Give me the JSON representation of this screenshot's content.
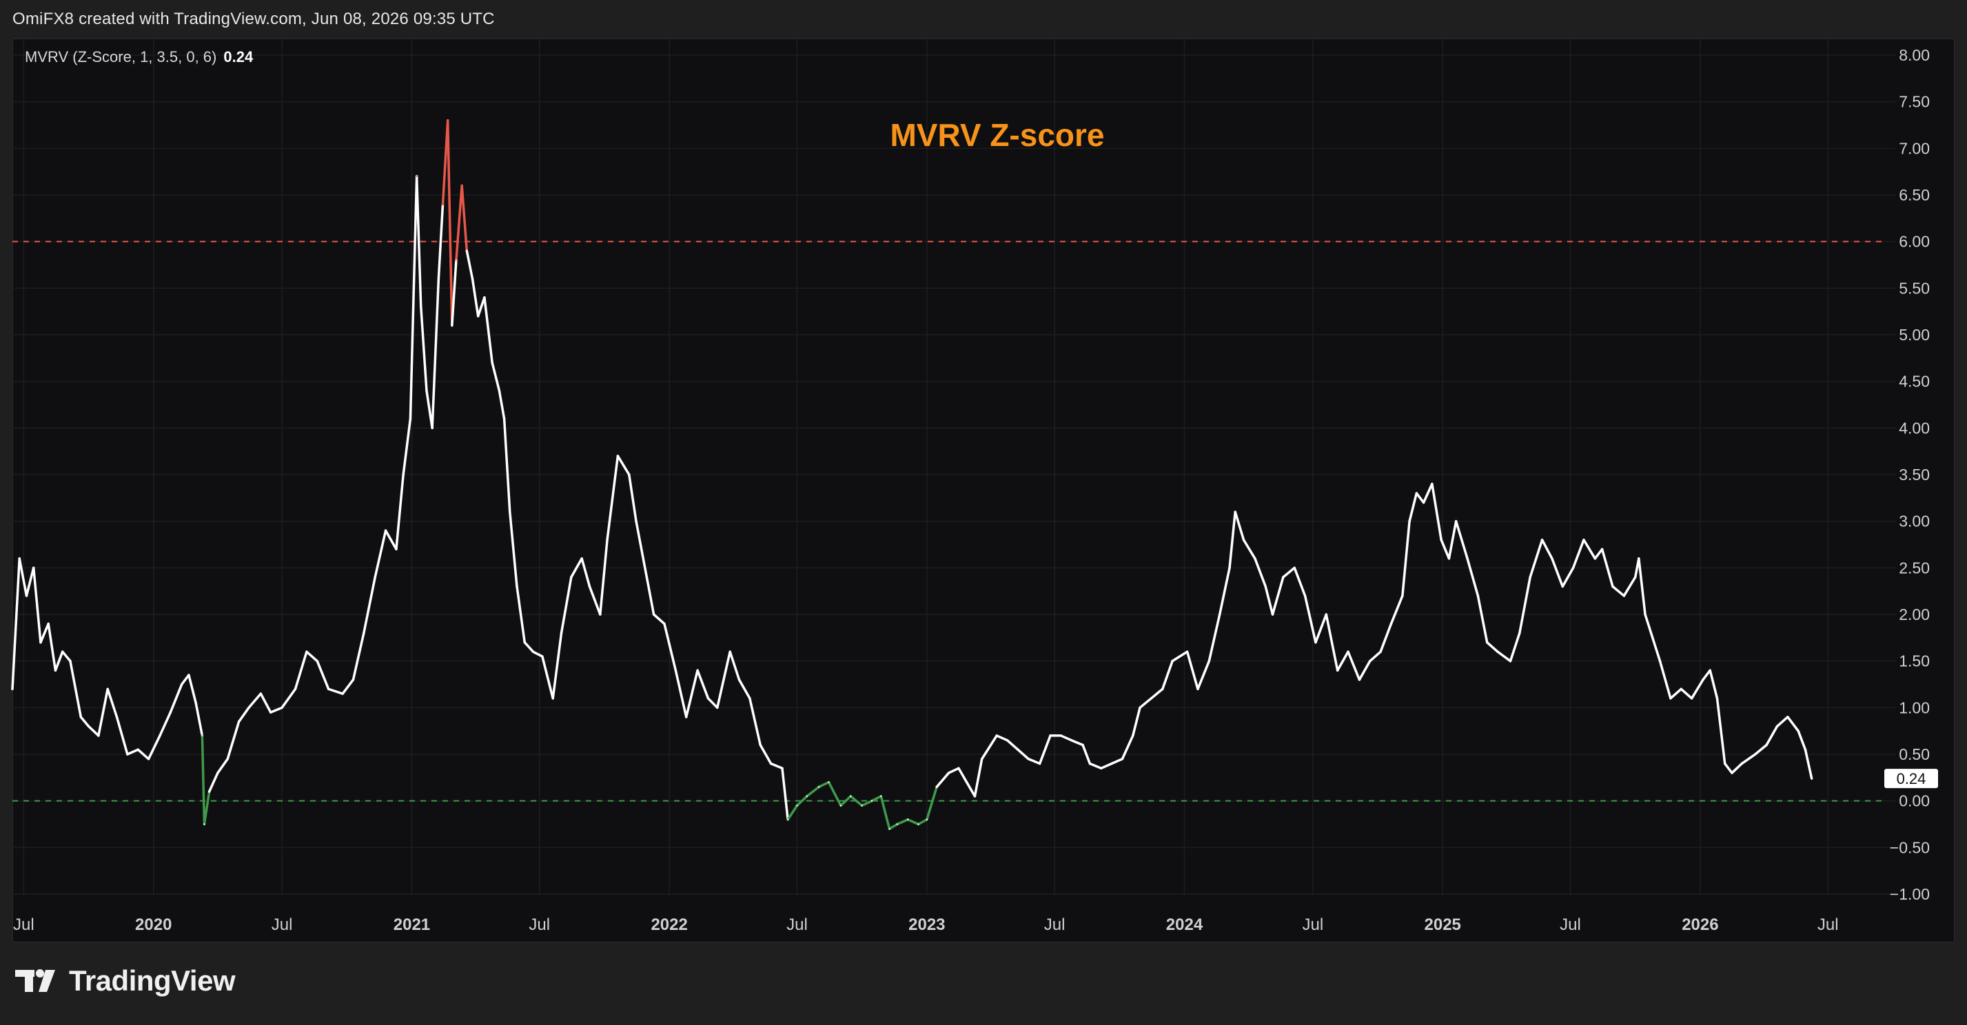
{
  "header": {
    "attribution": "OmiFX8 created with TradingView.com, Jun 08, 2026 09:35 UTC"
  },
  "legend": {
    "indicator": "MVRV (Z-Score, 1, 3.5, 0, 6)",
    "current_value": "0.24"
  },
  "footer": {
    "brand": "TradingView",
    "logo_icon": "tradingview-logo-icon"
  },
  "colors": {
    "background": "#0f0f11",
    "page": "#1f1f20",
    "line": "#ffffff",
    "above_threshold": "#e8584a",
    "below_threshold": "#3f9a4a",
    "title": "#f7931a",
    "upper_dash": "#e8584a",
    "lower_dash": "#3f9a4a",
    "grid": "#1e1e22",
    "axis_text": "#d0d0d0"
  },
  "chart_data": {
    "type": "line",
    "title": "MVRV Z-score",
    "ylim": [
      -1.0,
      8.0
    ],
    "y_ticks": [
      "8.00",
      "7.50",
      "7.00",
      "6.50",
      "6.00",
      "5.50",
      "5.00",
      "4.50",
      "4.00",
      "3.50",
      "3.00",
      "2.50",
      "2.00",
      "1.50",
      "1.00",
      "0.50",
      "0.00",
      "−0.50",
      "−1.00"
    ],
    "x_ticks": [
      {
        "label": "Jul",
        "date": "2019-07-01",
        "bold": false
      },
      {
        "label": "2020",
        "date": "2020-01-01",
        "bold": true
      },
      {
        "label": "Jul",
        "date": "2020-07-01",
        "bold": false
      },
      {
        "label": "2021",
        "date": "2021-01-01",
        "bold": true
      },
      {
        "label": "Jul",
        "date": "2021-07-01",
        "bold": false
      },
      {
        "label": "2022",
        "date": "2022-01-01",
        "bold": true
      },
      {
        "label": "Jul",
        "date": "2022-07-01",
        "bold": false
      },
      {
        "label": "2023",
        "date": "2023-01-01",
        "bold": true
      },
      {
        "label": "Jul",
        "date": "2023-07-01",
        "bold": false
      },
      {
        "label": "2024",
        "date": "2024-01-01",
        "bold": true
      },
      {
        "label": "Jul",
        "date": "2024-07-01",
        "bold": false
      },
      {
        "label": "2025",
        "date": "2025-01-01",
        "bold": true
      },
      {
        "label": "Jul",
        "date": "2025-07-01",
        "bold": false
      },
      {
        "label": "2026",
        "date": "2026-01-01",
        "bold": true
      },
      {
        "label": "Jul",
        "date": "2026-07-01",
        "bold": false
      }
    ],
    "x_range": [
      "2019-06-15",
      "2026-09-15"
    ],
    "thresholds": {
      "upper": 6.0,
      "lower": 0.0
    },
    "last_value_label": "0.24",
    "grid": true,
    "series": [
      {
        "points": [
          [
            "2019-06-15",
            1.2
          ],
          [
            "2019-06-25",
            2.6
          ],
          [
            "2019-07-05",
            2.2
          ],
          [
            "2019-07-15",
            2.5
          ],
          [
            "2019-07-25",
            1.7
          ],
          [
            "2019-08-05",
            1.9
          ],
          [
            "2019-08-15",
            1.4
          ],
          [
            "2019-08-25",
            1.6
          ],
          [
            "2019-09-05",
            1.5
          ],
          [
            "2019-09-20",
            0.9
          ],
          [
            "2019-10-01",
            0.8
          ],
          [
            "2019-10-15",
            0.7
          ],
          [
            "2019-10-28",
            1.2
          ],
          [
            "2019-11-10",
            0.9
          ],
          [
            "2019-11-25",
            0.5
          ],
          [
            "2019-12-10",
            0.55
          ],
          [
            "2019-12-25",
            0.45
          ],
          [
            "2020-01-10",
            0.7
          ],
          [
            "2020-01-25",
            0.95
          ],
          [
            "2020-02-10",
            1.25
          ],
          [
            "2020-02-20",
            1.35
          ],
          [
            "2020-03-01",
            1.05
          ],
          [
            "2020-03-10",
            0.7
          ],
          [
            "2020-03-13",
            -0.25
          ],
          [
            "2020-03-20",
            0.1
          ],
          [
            "2020-04-01",
            0.3
          ],
          [
            "2020-04-15",
            0.45
          ],
          [
            "2020-05-01",
            0.85
          ],
          [
            "2020-05-15",
            1.0
          ],
          [
            "2020-06-01",
            1.15
          ],
          [
            "2020-06-15",
            0.95
          ],
          [
            "2020-07-01",
            1.0
          ],
          [
            "2020-07-20",
            1.2
          ],
          [
            "2020-08-05",
            1.6
          ],
          [
            "2020-08-20",
            1.5
          ],
          [
            "2020-09-05",
            1.2
          ],
          [
            "2020-09-25",
            1.15
          ],
          [
            "2020-10-10",
            1.3
          ],
          [
            "2020-10-25",
            1.8
          ],
          [
            "2020-11-10",
            2.4
          ],
          [
            "2020-11-25",
            2.9
          ],
          [
            "2020-12-10",
            2.7
          ],
          [
            "2020-12-20",
            3.5
          ],
          [
            "2020-12-30",
            4.1
          ],
          [
            "2021-01-08",
            6.7
          ],
          [
            "2021-01-14",
            5.3
          ],
          [
            "2021-01-22",
            4.4
          ],
          [
            "2021-01-30",
            4.0
          ],
          [
            "2021-02-08",
            5.6
          ],
          [
            "2021-02-14",
            6.4
          ],
          [
            "2021-02-21",
            7.3
          ],
          [
            "2021-02-27",
            5.1
          ],
          [
            "2021-03-05",
            5.8
          ],
          [
            "2021-03-13",
            6.6
          ],
          [
            "2021-03-20",
            5.9
          ],
          [
            "2021-03-28",
            5.6
          ],
          [
            "2021-04-05",
            5.2
          ],
          [
            "2021-04-14",
            5.4
          ],
          [
            "2021-04-25",
            4.7
          ],
          [
            "2021-05-05",
            4.4
          ],
          [
            "2021-05-12",
            4.1
          ],
          [
            "2021-05-20",
            3.1
          ],
          [
            "2021-05-30",
            2.3
          ],
          [
            "2021-06-10",
            1.7
          ],
          [
            "2021-06-22",
            1.6
          ],
          [
            "2021-07-05",
            1.55
          ],
          [
            "2021-07-20",
            1.1
          ],
          [
            "2021-08-01",
            1.8
          ],
          [
            "2021-08-15",
            2.4
          ],
          [
            "2021-08-30",
            2.6
          ],
          [
            "2021-09-10",
            2.3
          ],
          [
            "2021-09-25",
            2.0
          ],
          [
            "2021-10-05",
            2.8
          ],
          [
            "2021-10-20",
            3.7
          ],
          [
            "2021-11-05",
            3.5
          ],
          [
            "2021-11-15",
            3.0
          ],
          [
            "2021-11-30",
            2.4
          ],
          [
            "2021-12-10",
            2.0
          ],
          [
            "2021-12-25",
            1.9
          ],
          [
            "2022-01-10",
            1.4
          ],
          [
            "2022-01-25",
            0.9
          ],
          [
            "2022-02-10",
            1.4
          ],
          [
            "2022-02-25",
            1.1
          ],
          [
            "2022-03-10",
            1.0
          ],
          [
            "2022-03-28",
            1.6
          ],
          [
            "2022-04-10",
            1.3
          ],
          [
            "2022-04-25",
            1.1
          ],
          [
            "2022-05-10",
            0.6
          ],
          [
            "2022-05-25",
            0.4
          ],
          [
            "2022-06-10",
            0.35
          ],
          [
            "2022-06-18",
            -0.2
          ],
          [
            "2022-07-01",
            -0.05
          ],
          [
            "2022-07-15",
            0.05
          ],
          [
            "2022-08-01",
            0.15
          ],
          [
            "2022-08-15",
            0.2
          ],
          [
            "2022-09-01",
            -0.05
          ],
          [
            "2022-09-15",
            0.05
          ],
          [
            "2022-10-01",
            -0.05
          ],
          [
            "2022-10-15",
            0.0
          ],
          [
            "2022-10-28",
            0.05
          ],
          [
            "2022-11-09",
            -0.3
          ],
          [
            "2022-11-20",
            -0.25
          ],
          [
            "2022-12-05",
            -0.2
          ],
          [
            "2022-12-20",
            -0.25
          ],
          [
            "2023-01-01",
            -0.2
          ],
          [
            "2023-01-15",
            0.15
          ],
          [
            "2023-02-01",
            0.3
          ],
          [
            "2023-02-15",
            0.35
          ],
          [
            "2023-03-10",
            0.05
          ],
          [
            "2023-03-20",
            0.45
          ],
          [
            "2023-04-10",
            0.7
          ],
          [
            "2023-04-25",
            0.65
          ],
          [
            "2023-05-10",
            0.55
          ],
          [
            "2023-05-25",
            0.45
          ],
          [
            "2023-06-10",
            0.4
          ],
          [
            "2023-06-25",
            0.7
          ],
          [
            "2023-07-10",
            0.7
          ],
          [
            "2023-07-25",
            0.65
          ],
          [
            "2023-08-10",
            0.6
          ],
          [
            "2023-08-20",
            0.4
          ],
          [
            "2023-09-05",
            0.35
          ],
          [
            "2023-09-20",
            0.4
          ],
          [
            "2023-10-05",
            0.45
          ],
          [
            "2023-10-20",
            0.7
          ],
          [
            "2023-10-30",
            1.0
          ],
          [
            "2023-11-15",
            1.1
          ],
          [
            "2023-12-01",
            1.2
          ],
          [
            "2023-12-15",
            1.5
          ],
          [
            "2024-01-05",
            1.6
          ],
          [
            "2024-01-20",
            1.2
          ],
          [
            "2024-02-05",
            1.5
          ],
          [
            "2024-02-20",
            2.0
          ],
          [
            "2024-03-05",
            2.5
          ],
          [
            "2024-03-13",
            3.1
          ],
          [
            "2024-03-25",
            2.8
          ],
          [
            "2024-04-10",
            2.6
          ],
          [
            "2024-04-25",
            2.3
          ],
          [
            "2024-05-05",
            2.0
          ],
          [
            "2024-05-20",
            2.4
          ],
          [
            "2024-06-05",
            2.5
          ],
          [
            "2024-06-20",
            2.2
          ],
          [
            "2024-07-05",
            1.7
          ],
          [
            "2024-07-20",
            2.0
          ],
          [
            "2024-08-05",
            1.4
          ],
          [
            "2024-08-20",
            1.6
          ],
          [
            "2024-09-05",
            1.3
          ],
          [
            "2024-09-20",
            1.5
          ],
          [
            "2024-10-05",
            1.6
          ],
          [
            "2024-10-20",
            1.9
          ],
          [
            "2024-11-05",
            2.2
          ],
          [
            "2024-11-15",
            3.0
          ],
          [
            "2024-11-25",
            3.3
          ],
          [
            "2024-12-05",
            3.2
          ],
          [
            "2024-12-17",
            3.4
          ],
          [
            "2024-12-30",
            2.8
          ],
          [
            "2025-01-10",
            2.6
          ],
          [
            "2025-01-20",
            3.0
          ],
          [
            "2025-02-05",
            2.6
          ],
          [
            "2025-02-20",
            2.2
          ],
          [
            "2025-03-05",
            1.7
          ],
          [
            "2025-03-20",
            1.6
          ],
          [
            "2025-04-07",
            1.5
          ],
          [
            "2025-04-20",
            1.8
          ],
          [
            "2025-05-05",
            2.4
          ],
          [
            "2025-05-22",
            2.8
          ],
          [
            "2025-06-05",
            2.6
          ],
          [
            "2025-06-20",
            2.3
          ],
          [
            "2025-07-05",
            2.5
          ],
          [
            "2025-07-20",
            2.8
          ],
          [
            "2025-08-05",
            2.6
          ],
          [
            "2025-08-15",
            2.7
          ],
          [
            "2025-08-30",
            2.3
          ],
          [
            "2025-09-15",
            2.2
          ],
          [
            "2025-10-01",
            2.4
          ],
          [
            "2025-10-06",
            2.6
          ],
          [
            "2025-10-15",
            2.0
          ],
          [
            "2025-11-05",
            1.5
          ],
          [
            "2025-11-20",
            1.1
          ],
          [
            "2025-12-05",
            1.2
          ],
          [
            "2025-12-20",
            1.1
          ],
          [
            "2026-01-05",
            1.3
          ],
          [
            "2026-01-15",
            1.4
          ],
          [
            "2026-01-25",
            1.1
          ],
          [
            "2026-02-05",
            0.4
          ],
          [
            "2026-02-15",
            0.3
          ],
          [
            "2026-03-01",
            0.4
          ],
          [
            "2026-03-20",
            0.5
          ],
          [
            "2026-04-05",
            0.6
          ],
          [
            "2026-04-20",
            0.8
          ],
          [
            "2026-05-05",
            0.9
          ],
          [
            "2026-05-20",
            0.75
          ],
          [
            "2026-05-30",
            0.55
          ],
          [
            "2026-06-08",
            0.24
          ]
        ]
      }
    ]
  }
}
